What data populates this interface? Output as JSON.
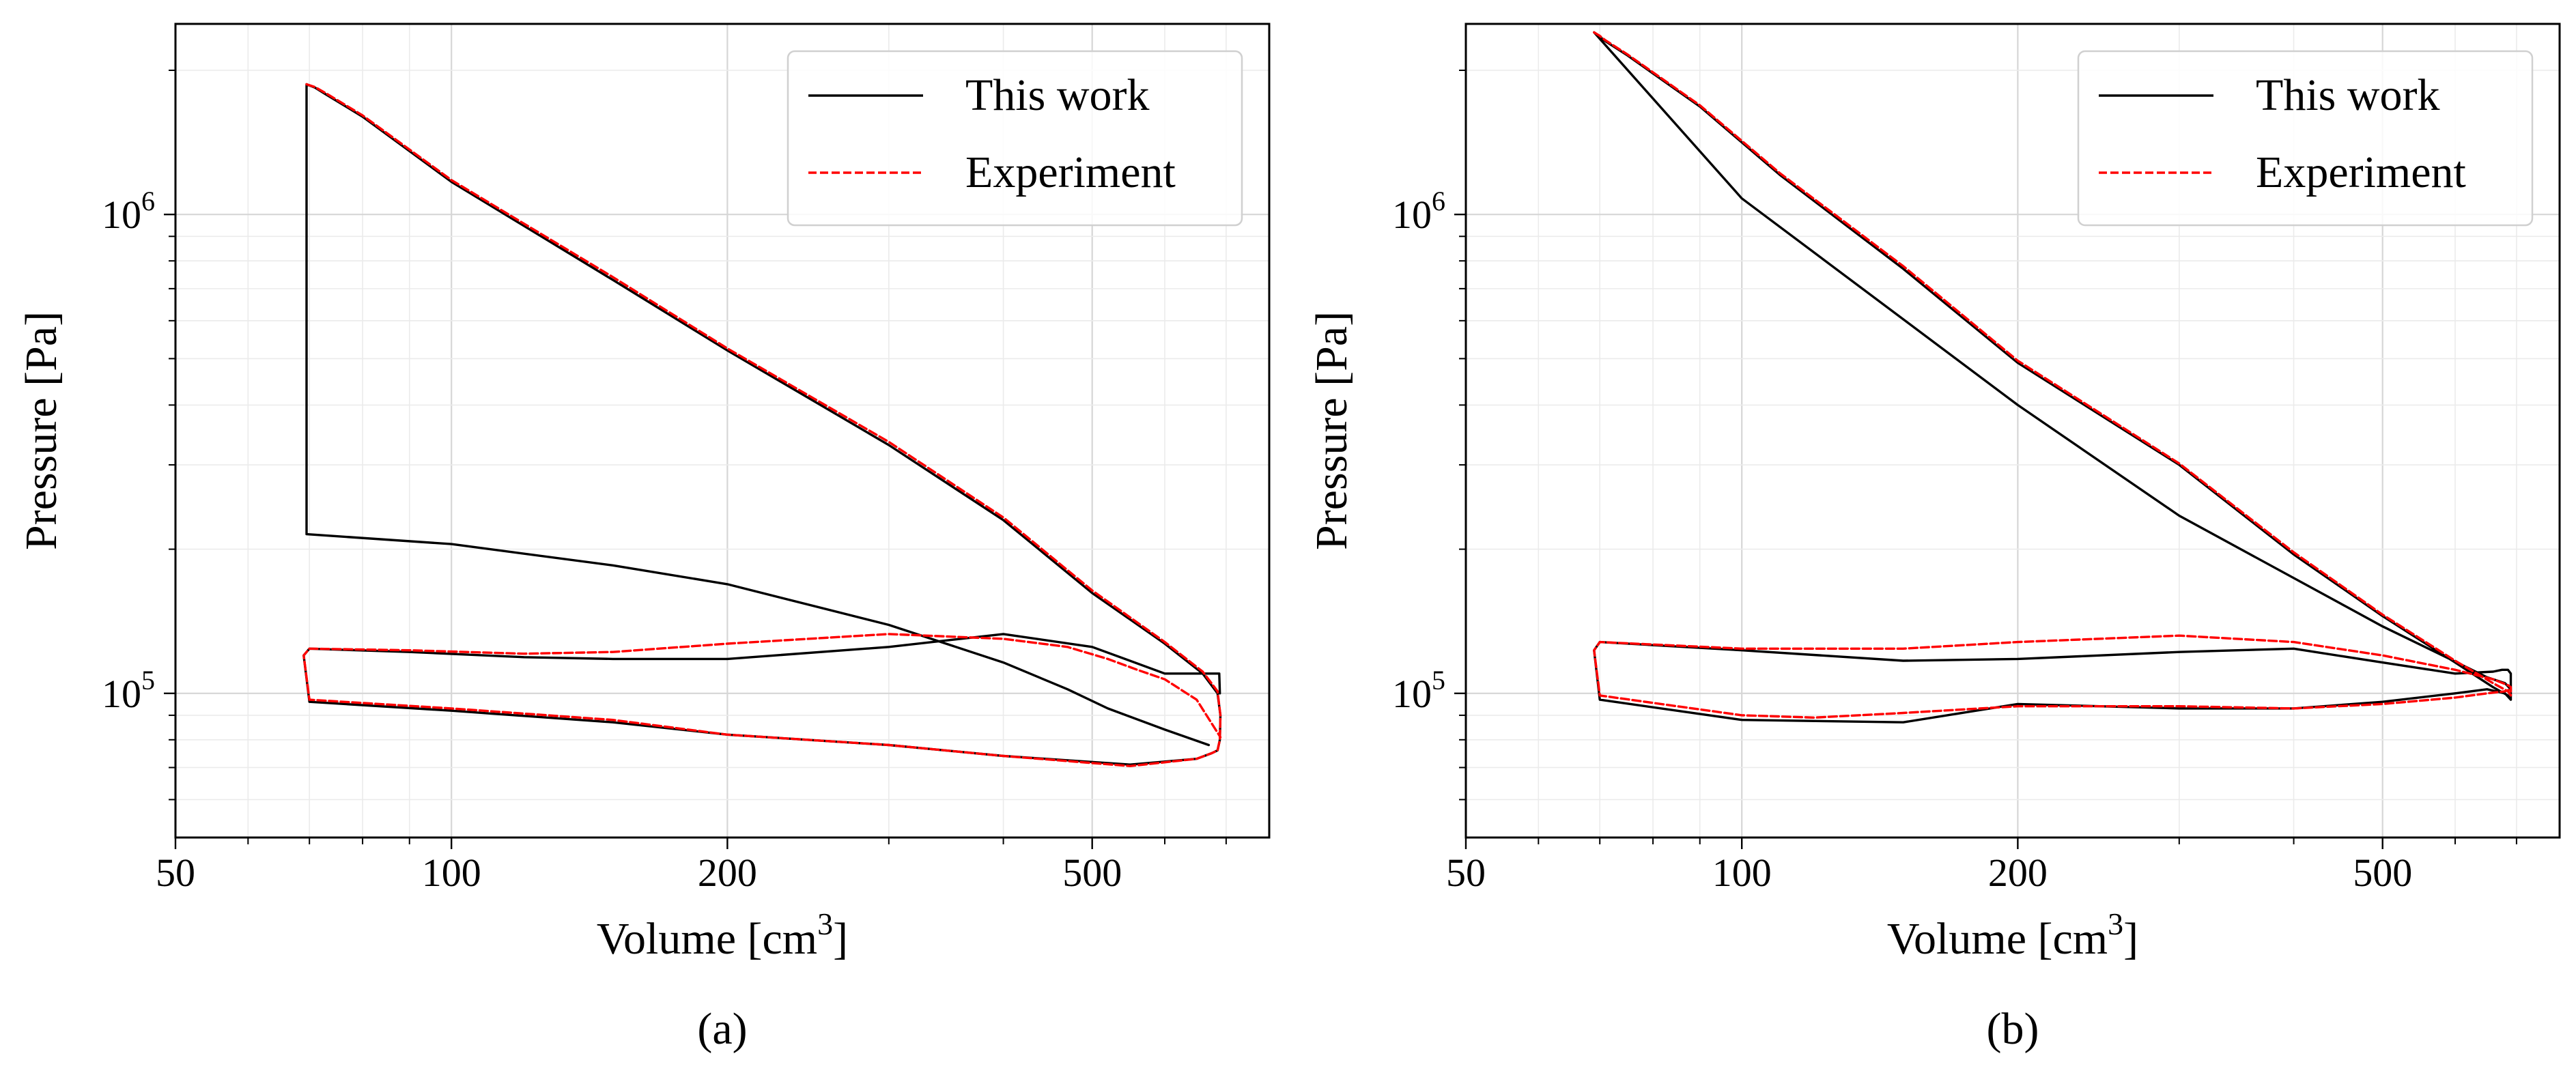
{
  "chart_data": [
    {
      "type": "line",
      "panel_label": "(a)",
      "xlabel": "Volume [cm",
      "xlabel_sup": "3",
      "xlabel_end": "]",
      "ylabel": "Pressure [Pa]",
      "xscale": "log",
      "yscale": "log",
      "xlim": [
        50,
        780
      ],
      "ylim": [
        50000,
        2500000
      ],
      "xticks": [
        {
          "value": 50,
          "label": "50"
        },
        {
          "value": 100,
          "label": "100"
        },
        {
          "value": 200,
          "label": "200"
        },
        {
          "value": 500,
          "label": "500"
        }
      ],
      "yticks": [
        {
          "value": 100000,
          "base": "10",
          "exp": "5"
        },
        {
          "value": 1000000,
          "base": "10",
          "exp": "6"
        }
      ],
      "grid": true,
      "legend_position": "top-right",
      "series": [
        {
          "name": "This work",
          "color": "#000000",
          "style": "solid",
          "x": [
            670,
            600,
            520,
            470,
            400,
            300,
            200,
            150,
            100,
            69.5,
            69.5,
            71,
            73,
            80,
            100,
            150,
            200,
            300,
            400,
            500,
            600,
            660,
            685,
            690,
            689,
            685,
            675,
            650,
            550,
            400,
            300,
            200,
            150,
            100,
            70,
            69,
            70,
            90,
            120,
            150,
            200,
            300,
            400,
            500,
            600,
            670,
            688,
            689
          ],
          "y": [
            78000,
            84000,
            93000,
            102000,
            116000,
            139000,
            169000,
            185000,
            205000,
            215000,
            1870000,
            1840000,
            1780000,
            1600000,
            1170000,
            730000,
            520000,
            330000,
            230000,
            162000,
            127000,
            110000,
            100000,
            90000,
            80000,
            76000,
            75000,
            73000,
            71000,
            74000,
            78000,
            82000,
            87000,
            92000,
            96000,
            120000,
            124000,
            122000,
            119000,
            118000,
            118000,
            125000,
            133000,
            125000,
            110000,
            110000,
            110000,
            100000
          ]
        },
        {
          "name": "Experiment",
          "color": "#ff0000",
          "style": "dashed",
          "x": [
            69.5,
            71,
            73,
            80,
            100,
            150,
            200,
            300,
            400,
            500,
            600,
            660,
            685,
            690,
            689,
            685,
            675,
            650,
            550,
            400,
            300,
            200,
            150,
            100,
            70,
            69,
            70,
            90,
            120,
            150,
            200,
            300,
            400,
            470,
            520,
            560,
            600,
            650,
            690
          ],
          "y": [
            1870000,
            1845000,
            1790000,
            1610000,
            1180000,
            740000,
            525000,
            335000,
            233000,
            164000,
            128000,
            111000,
            101000,
            90000,
            80000,
            76000,
            75000,
            73000,
            70500,
            74000,
            78000,
            82000,
            88000,
            93000,
            97000,
            120000,
            124000,
            123000,
            121000,
            122000,
            127000,
            133000,
            130000,
            125000,
            118000,
            112000,
            107000,
            97000,
            81000
          ]
        }
      ]
    },
    {
      "type": "line",
      "panel_label": "(b)",
      "xlabel": "Volume [cm",
      "xlabel_sup": "3",
      "xlabel_end": "]",
      "ylabel": "Pressure [Pa]",
      "xscale": "log",
      "yscale": "log",
      "xlim": [
        50,
        780
      ],
      "ylim": [
        50000,
        2500000
      ],
      "xticks": [
        {
          "value": 50,
          "label": "50"
        },
        {
          "value": 100,
          "label": "100"
        },
        {
          "value": 200,
          "label": "200"
        },
        {
          "value": 500,
          "label": "500"
        }
      ],
      "yticks": [
        {
          "value": 100000,
          "base": "10",
          "exp": "5"
        },
        {
          "value": 1000000,
          "base": "10",
          "exp": "6"
        }
      ],
      "grid": true,
      "legend_position": "top-right",
      "series": [
        {
          "name": "This work",
          "color": "#000000",
          "style": "solid",
          "x": [
            690,
            680,
            650,
            620,
            500,
            300,
            200,
            100,
            69,
            69,
            70,
            71,
            75,
            90,
            110,
            150,
            200,
            300,
            400,
            500,
            600,
            660,
            685,
            690,
            690,
            685,
            675,
            660,
            600,
            500,
            400,
            300,
            200,
            150,
            100,
            70,
            69,
            70,
            100,
            150,
            200,
            300,
            400,
            500,
            600,
            650,
            680,
            690
          ],
          "y": [
            102000,
            105000,
            108000,
            113000,
            138000,
            235000,
            400000,
            1080000,
            2400000,
            2400000,
            2350000,
            2300000,
            2150000,
            1680000,
            1210000,
            770000,
            490000,
            300000,
            195000,
            145000,
            116000,
            103000,
            99000,
            97000,
            110000,
            112000,
            112000,
            111000,
            110000,
            116000,
            124000,
            122000,
            118000,
            117000,
            123000,
            128000,
            123000,
            97000,
            88000,
            87000,
            95000,
            93000,
            93000,
            96000,
            100000,
            102000,
            100000,
            97000
          ]
        },
        {
          "name": "Experiment",
          "color": "#ff0000",
          "style": "dashed",
          "x": [
            69,
            70,
            71,
            75,
            90,
            110,
            150,
            200,
            300,
            400,
            500,
            600,
            660,
            685,
            690,
            690,
            685,
            660,
            600,
            500,
            400,
            300,
            200,
            150,
            100,
            70,
            69,
            70,
            100,
            120,
            150,
            200,
            300,
            400,
            500,
            600,
            650,
            680,
            690
          ],
          "y": [
            2400000,
            2360000,
            2310000,
            2160000,
            1690000,
            1220000,
            780000,
            495000,
            302000,
            197000,
            146000,
            117000,
            105000,
            101000,
            99000,
            103000,
            104000,
            107000,
            112000,
            120000,
            128000,
            132000,
            128000,
            124000,
            124000,
            128000,
            123000,
            99000,
            90000,
            89000,
            91000,
            94000,
            94000,
            93000,
            95000,
            98000,
            100000,
            101000,
            102000
          ]
        }
      ]
    }
  ]
}
